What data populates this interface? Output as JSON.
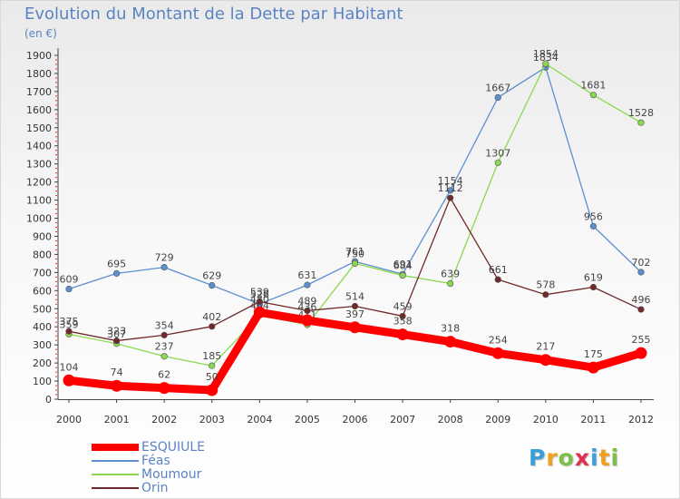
{
  "title": "Evolution du Montant de la Dette par Habitant",
  "unit_label": "(en €)",
  "logo": {
    "letters": [
      "P",
      "r",
      "o",
      "x",
      "i",
      "t",
      "i"
    ],
    "colors": [
      "#3aa0d8",
      "#f0a020",
      "#7cc04a",
      "#e03050",
      "#3aa0d8",
      "#f0a020",
      "#7cc04a"
    ]
  },
  "chart_data": {
    "type": "line",
    "title": "Evolution du Montant de la Dette par Habitant",
    "ylabel": "(en €)",
    "xlabel": "",
    "x": [
      "2000",
      "2001",
      "2002",
      "2003",
      "2004",
      "2005",
      "2006",
      "2007",
      "2008",
      "2009",
      "2010",
      "2011",
      "2012"
    ],
    "ylim": [
      0,
      1900
    ],
    "yticks": [
      0,
      100,
      200,
      300,
      400,
      500,
      600,
      700,
      800,
      900,
      1000,
      1100,
      1200,
      1300,
      1400,
      1500,
      1600,
      1700,
      1800,
      1900
    ],
    "grid": false,
    "legend_position": "bottom-left",
    "series": [
      {
        "name": "Féas",
        "color": "#5b8fd0",
        "values": [
          609,
          695,
          729,
          629,
          526,
          631,
          761,
          691,
          1154,
          1667,
          1834,
          956,
          702
        ]
      },
      {
        "name": "Moumour",
        "color": "#8ad850",
        "values": [
          359,
          307,
          237,
          185,
          464,
          411,
          750,
          684,
          639,
          1307,
          1854,
          1681,
          1528
        ]
      },
      {
        "name": "Orin",
        "color": "#702828",
        "values": [
          375,
          323,
          354,
          402,
          539,
          489,
          514,
          459,
          1112,
          661,
          578,
          619,
          496
        ]
      },
      {
        "name": "ESQUIULE",
        "color": "#ff0000",
        "values": [
          104,
          74,
          62,
          50,
          480,
          436,
          397,
          358,
          318,
          254,
          217,
          175,
          255
        ]
      }
    ]
  }
}
